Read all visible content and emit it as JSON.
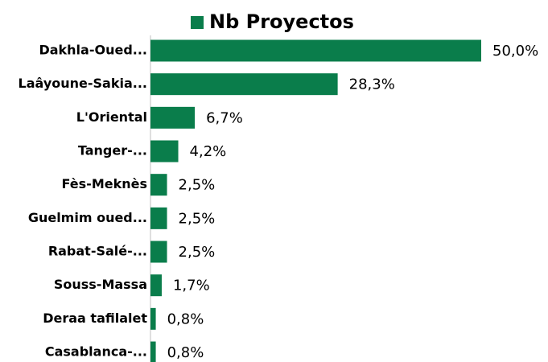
{
  "chart_data": {
    "type": "bar",
    "orientation": "horizontal",
    "categories": [
      "Dakhla-Oued...",
      "Laâyoune-Sakia...",
      "L'Oriental",
      "Tanger-...",
      "Fès-Meknès",
      "Guelmim oued...",
      "Rabat-Salé-...",
      "Souss-Massa",
      "Deraa tafilalet",
      "Casablanca-..."
    ],
    "series": [
      {
        "name": "Nb Proyectos",
        "color": "#0a7d4b",
        "values": [
          50.0,
          28.3,
          6.7,
          4.2,
          2.5,
          2.5,
          2.5,
          1.7,
          0.8,
          0.8
        ],
        "value_labels": [
          "50,0%",
          "28,3%",
          "6,7%",
          "4,2%",
          "2,5%",
          "2,5%",
          "2,5%",
          "1,7%",
          "0,8%",
          "0,8%"
        ]
      }
    ],
    "legend": "top"
  }
}
